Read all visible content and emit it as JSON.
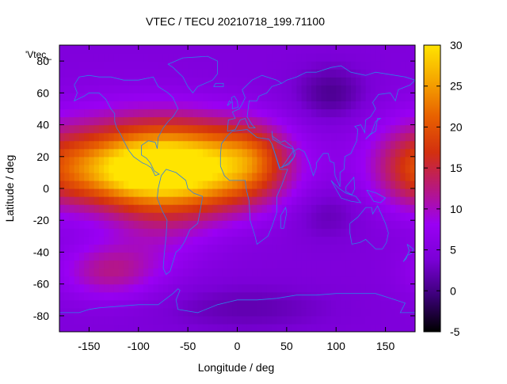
{
  "chart_data": {
    "type": "heatmap",
    "title": "VTEC / TECU 20210718_199.71100",
    "xlabel": "Longitude / deg",
    "ylabel": "Latitude / deg",
    "series_label": "'Vtec_",
    "xlim": [
      -180,
      180
    ],
    "ylim": [
      -90,
      90
    ],
    "xticks": [
      -150,
      -100,
      -50,
      0,
      50,
      100,
      150
    ],
    "yticks": [
      -80,
      -60,
      -40,
      -20,
      0,
      20,
      40,
      60,
      80
    ],
    "colorbar": {
      "range": [
        -5,
        30
      ],
      "ticks": [
        -5,
        0,
        5,
        10,
        15,
        20,
        25,
        30
      ],
      "palette": [
        "#000000",
        "#3b0077",
        "#7a00d6",
        "#9a00f4",
        "#b7187e",
        "#d3300f",
        "#e86000",
        "#f5a500",
        "#ffe400"
      ]
    },
    "grid": false,
    "grid_resolution_deg": [
      5,
      5
    ],
    "features": [
      {
        "lon": -35,
        "lat": 8,
        "amp": 17,
        "slon": 55,
        "slat": 17
      },
      {
        "lon": -110,
        "lat": 10,
        "amp": 15,
        "slon": 45,
        "slat": 15
      },
      {
        "lon": -110,
        "lat": 25,
        "amp": 6,
        "slon": 70,
        "slat": 22
      },
      {
        "lon": -50,
        "lat": 28,
        "amp": 7,
        "slon": 60,
        "slat": 15
      },
      {
        "lon": 15,
        "lat": 20,
        "amp": 6,
        "slon": 25,
        "slat": 15
      },
      {
        "lon": 175,
        "lat": 12,
        "amp": 7,
        "slon": 30,
        "slat": 18
      },
      {
        "lon": -130,
        "lat": -52,
        "amp": 7,
        "slon": 35,
        "slat": 12
      },
      {
        "lon": -80,
        "lat": -25,
        "amp": 4,
        "slon": 40,
        "slat": 18
      },
      {
        "lon": 95,
        "lat": 60,
        "amp": -4,
        "slon": 25,
        "slat": 12
      },
      {
        "lon": 90,
        "lat": -15,
        "amp": -2.5,
        "slon": 25,
        "slat": 12
      },
      {
        "lon": 10,
        "lat": -75,
        "amp": -2.5,
        "slon": 60,
        "slat": 10
      }
    ],
    "base_value": 4.5
  }
}
